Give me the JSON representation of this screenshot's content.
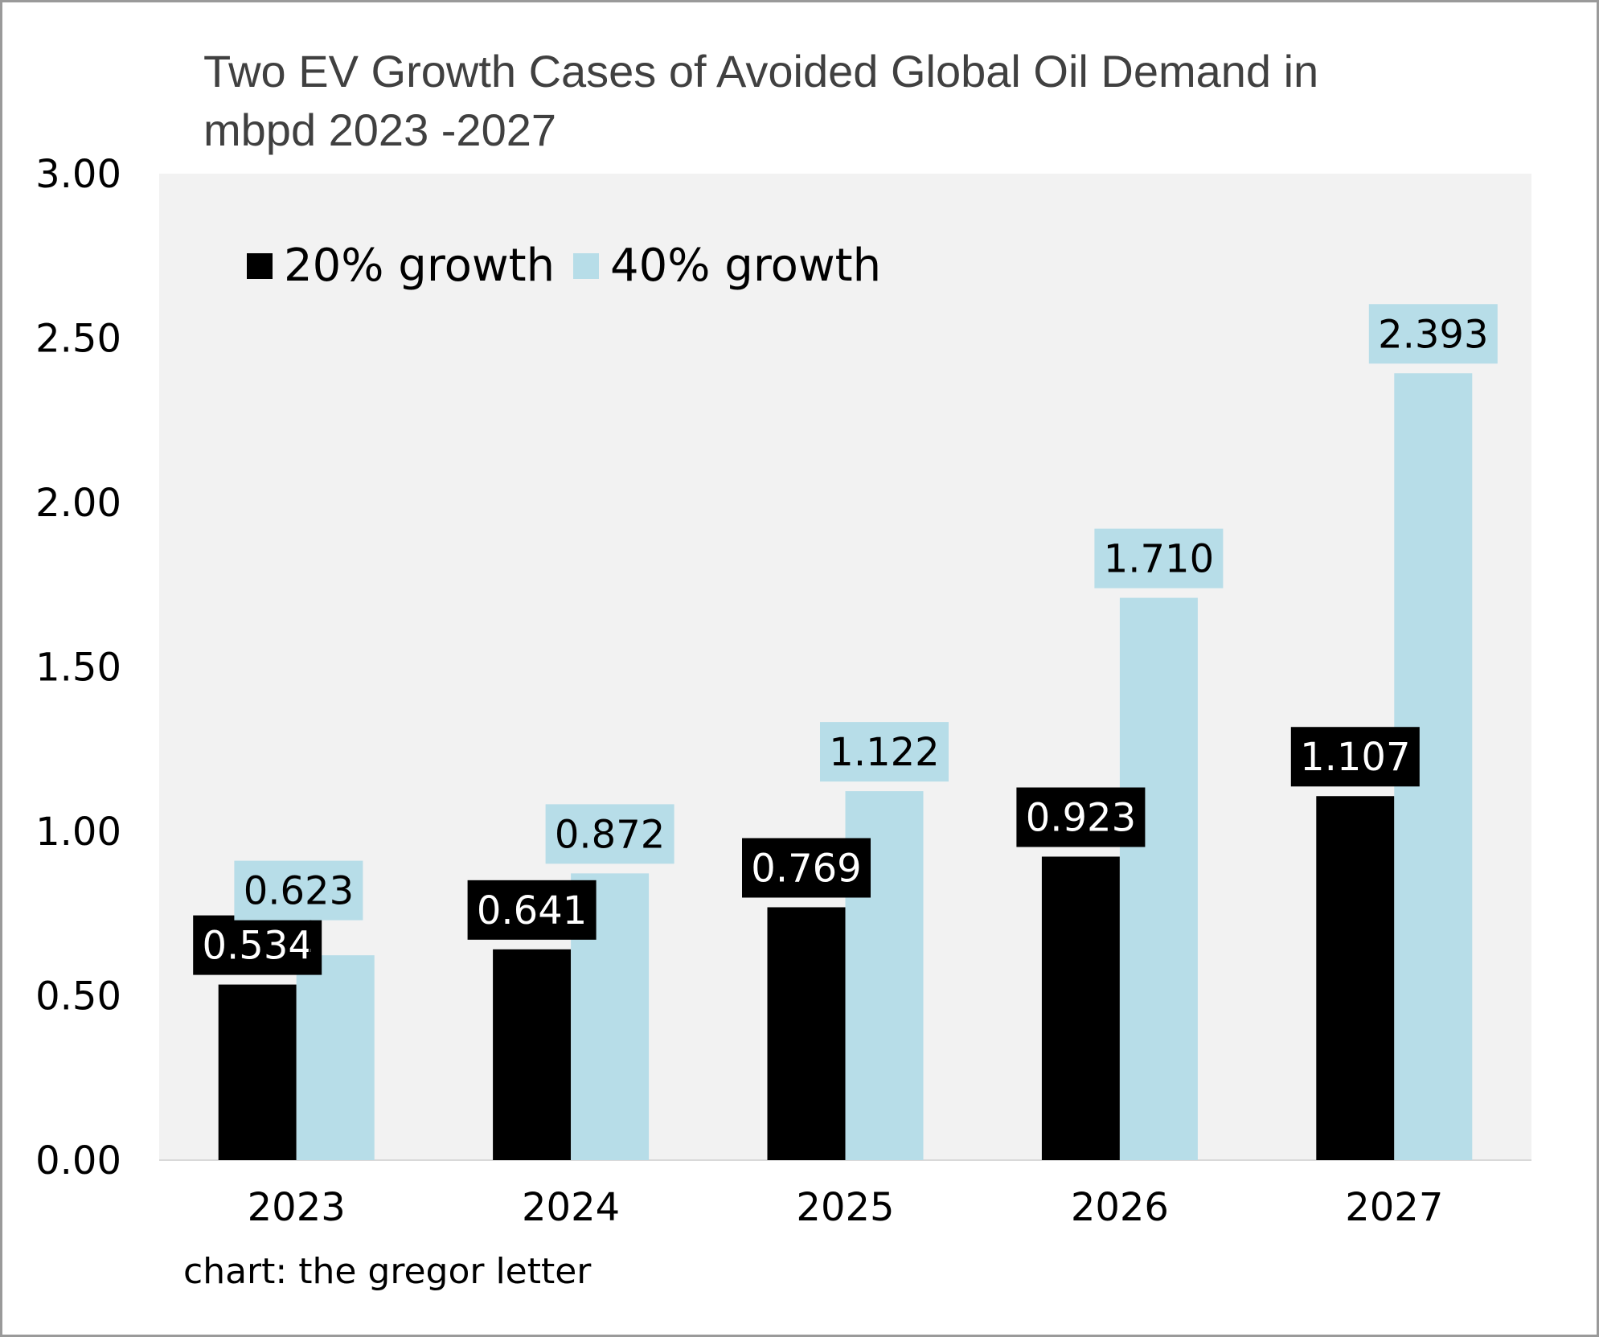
{
  "chart_data": {
    "type": "bar",
    "title_lines": [
      "Two EV Growth Cases of Avoided Global Oil Demand in",
      "mbpd 2023 -2027"
    ],
    "categories": [
      "2023",
      "2024",
      "2025",
      "2026",
      "2027"
    ],
    "series": [
      {
        "name": "20% growth",
        "color": "#000000",
        "label_text_color": "#ffffff",
        "values": [
          0.534,
          0.641,
          0.769,
          0.923,
          1.107
        ],
        "labels": [
          "0.534",
          "0.641",
          "0.769",
          "0.923",
          "1.107"
        ]
      },
      {
        "name": "40% growth",
        "color": "#b7dde8",
        "label_text_color": "#000000",
        "values": [
          0.623,
          0.872,
          1.122,
          1.71,
          2.393
        ],
        "labels": [
          "0.623",
          "0.872",
          "1.122",
          "1.710",
          "2.393"
        ]
      }
    ],
    "ylim": [
      0,
      3
    ],
    "yticks": [
      0,
      0.5,
      1,
      1.5,
      2,
      2.5,
      3
    ],
    "ytick_labels": [
      "0.00",
      "0.50",
      "1.00",
      "1.50",
      "2.00",
      "2.50",
      "3.00"
    ],
    "xlabel": "",
    "ylabel": "",
    "plot_background": "#f2f2f2",
    "legend_position": "top-left",
    "grid": false
  },
  "footer": {
    "credit": "chart: the gregor letter"
  }
}
